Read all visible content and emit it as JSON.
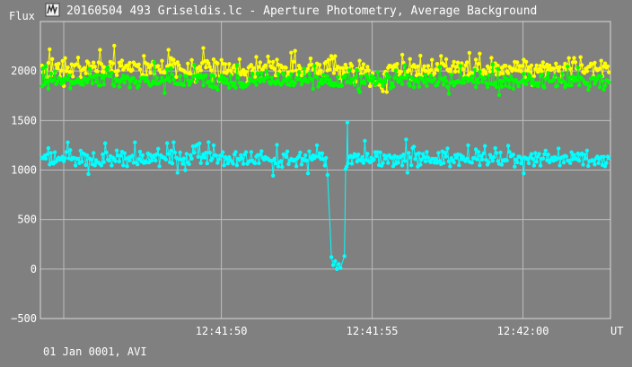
{
  "window": {
    "title": "20160504 493 Griseldis.lc - Aperture Photometry, Average Background",
    "icon": "lightcurve-app-icon"
  },
  "footer": {
    "date_text": "01 Jan 0001, AVI"
  },
  "chart_data": {
    "type": "line",
    "title": "20160504 493 Griseldis.lc - Aperture Photometry, Average Background",
    "ylabel": "Flux",
    "xlabel": "UT",
    "ylim": [
      -500,
      2500
    ],
    "yticks": [
      -500,
      0,
      500,
      1000,
      1500,
      2000
    ],
    "xlim_seconds": [
      -6.0,
      12.9
    ],
    "xticks": [
      {
        "seconds": 0,
        "label": "12:41:50"
      },
      {
        "seconds": 5,
        "label": "12:41:55"
      },
      {
        "seconds": 10,
        "label": "12:42:00"
      }
    ],
    "grid": true,
    "series": [
      {
        "name": "",
        "color": "#ffff00",
        "points_approx": 500,
        "base": 2020,
        "amplitude": 80,
        "values_sample": [
          2040,
          1985,
          2100,
          2010,
          1960,
          2120,
          2070,
          1990,
          2150,
          2030,
          1950,
          2080,
          2000,
          2200,
          1940,
          2060,
          2110,
          1975,
          2025,
          2090
        ]
      },
      {
        "name": "",
        "color": "#00ff00",
        "points_approx": 500,
        "base": 1900,
        "amplitude": 70,
        "values_sample": [
          1880,
          1920,
          1850,
          1950,
          1890,
          1830,
          1910,
          1960,
          1870,
          1900,
          1840,
          1930,
          1880,
          1970,
          1860,
          1910,
          1820,
          1940,
          1890,
          1900
        ]
      },
      {
        "name": "",
        "color": "#00ffff",
        "points_approx": 500,
        "base": 1110,
        "amplitude": 70,
        "values_sample": [
          1150,
          1080,
          1200,
          1060,
          1130,
          1110,
          1040,
          1170,
          1090,
          1120,
          1250,
          1030,
          1140,
          1100,
          1080,
          1160,
          1060,
          1120,
          1190,
          1070
        ],
        "occultation": {
          "start_seconds": 3.6,
          "end_seconds": 4.1,
          "pre_value": 950,
          "min_values": [
            120,
            40,
            80,
            0,
            50,
            10
          ],
          "post_values": [
            130,
            1010,
            1480
          ]
        }
      }
    ]
  }
}
